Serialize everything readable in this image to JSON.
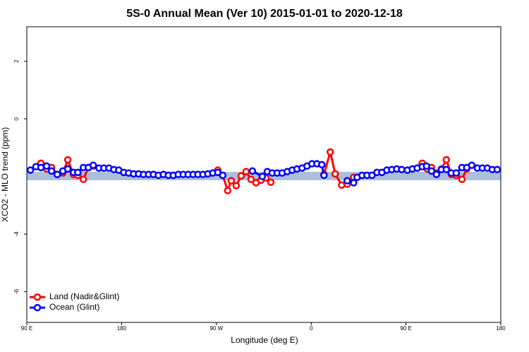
{
  "chart_data": {
    "type": "line",
    "title": "5S-0 Annual Mean (Ver 10)   2015-01-01 to 2020-12-18",
    "x_label": "Longitude (deg E)",
    "y_label": "XCO2 - MLO trend (ppm)",
    "xlim": [
      90,
      540
    ],
    "ylim": [
      -7.07,
      3.2
    ],
    "xticks": [
      {
        "value": 90,
        "label": "90 E"
      },
      180,
      {
        "value": 270,
        "label": "90 W"
      },
      {
        "value": 360,
        "label": "0"
      },
      {
        "value": 450,
        "label": "90 E"
      },
      {
        "value": 540,
        "label": "180"
      }
    ],
    "yticks": [
      -6,
      -4,
      0,
      2
    ],
    "band": [
      -2.13,
      -1.84
    ],
    "band_color": "#aabfdc",
    "legend": "bottom-left",
    "series": [
      {
        "name": "Land (Nadir&Glint)",
        "color": "#ff0000",
        "x": [
          103.4,
          108.8,
          113.5,
          118.9,
          124.2,
          128.9,
          134.3,
          138.4,
          143.7,
          148.4,
          153.1,
          200,
          271.3,
          276,
          280.7,
          284.1,
          288.8,
          293.5,
          298.2,
          302.9,
          307.6,
          312.3,
          317,
          321.7,
          390,
          372.1,
          378.1,
          382.8,
          388.9,
          394.2,
          400.3,
          430,
          465.4,
          470.1,
          474.2,
          478.9,
          483.6,
          488.3,
          493,
          497.7,
          503.1,
          507.7
        ],
        "values": [
          -1.54,
          -1.74,
          -1.69,
          -1.93,
          -1.88,
          -1.42,
          -1.93,
          -1.96,
          -2.1,
          -1.69,
          -1.64,
          null,
          -1.78,
          -1.96,
          -2.49,
          -2.15,
          -2.32,
          -1.98,
          -1.83,
          -2.1,
          -2.22,
          -2.13,
          -2.05,
          -2.2,
          null,
          -1.93,
          -1.15,
          -1.91,
          -2.3,
          -2.27,
          -2.03,
          null,
          -1.54,
          -1.74,
          -1.69,
          -1.88,
          -1.74,
          -1.42,
          -1.93,
          -1.96,
          -2.1,
          -1.74
        ]
      },
      {
        "name": "Ocean (Glint)",
        "color": "#0000ff",
        "x": [
          93.4,
          98.7,
          103.4,
          108.8,
          113.5,
          118.9,
          124.2,
          128.9,
          134.3,
          138.4,
          143.7,
          148.4,
          153.1,
          158.5,
          163.2,
          167.9,
          172.6,
          177.3,
          182,
          186.7,
          191.4,
          196.1,
          200.8,
          205.6,
          210.2,
          214.9,
          219.7,
          224.4,
          229.1,
          233.8,
          238.5,
          243.2,
          247.9,
          252.5,
          257.2,
          261.9,
          266.6,
          271.3,
          276,
          290,
          304.2,
          313.6,
          318.3,
          323,
          327.7,
          332.4,
          337.2,
          341.9,
          346.5,
          351.3,
          356,
          360.7,
          365.4,
          370.1,
          372.1,
          383,
          394.2,
          400.3,
          403.6,
          408.3,
          413,
          417.7,
          422.4,
          427.1,
          431.8,
          436.5,
          441.2,
          445.9,
          451.3,
          456,
          460.7,
          465.4,
          469.5,
          474.2,
          478.9,
          483.6,
          488.3,
          493,
          497.7,
          503.1,
          507.7,
          512.4,
          517.8,
          522.5,
          527.2,
          531.9,
          536.6
        ],
        "values": [
          -1.78,
          -1.66,
          -1.69,
          -1.64,
          -1.81,
          -1.93,
          -1.81,
          -1.74,
          -1.86,
          -1.86,
          -1.69,
          -1.69,
          -1.61,
          -1.71,
          -1.71,
          -1.71,
          -1.76,
          -1.78,
          -1.86,
          -1.88,
          -1.91,
          -1.91,
          -1.93,
          -1.93,
          -1.93,
          -1.96,
          -1.93,
          -1.96,
          -1.96,
          -1.93,
          -1.93,
          -1.93,
          -1.93,
          -1.93,
          -1.93,
          -1.91,
          -1.88,
          -1.86,
          -1.96,
          null,
          -1.81,
          -2.0,
          -1.83,
          -1.88,
          -1.88,
          -1.88,
          -1.83,
          -1.78,
          -1.74,
          -1.71,
          -1.64,
          -1.56,
          -1.56,
          -1.59,
          -1.96,
          null,
          -2.15,
          -2.22,
          -2.03,
          -1.96,
          -1.96,
          -1.96,
          -1.86,
          -1.86,
          -1.78,
          -1.76,
          -1.74,
          -1.76,
          -1.78,
          -1.74,
          -1.71,
          -1.66,
          -1.64,
          -1.81,
          -1.93,
          -1.76,
          -1.76,
          -1.88,
          -1.88,
          -1.69,
          -1.69,
          -1.61,
          -1.71,
          -1.71,
          -1.71,
          -1.76,
          -1.76
        ]
      }
    ]
  }
}
